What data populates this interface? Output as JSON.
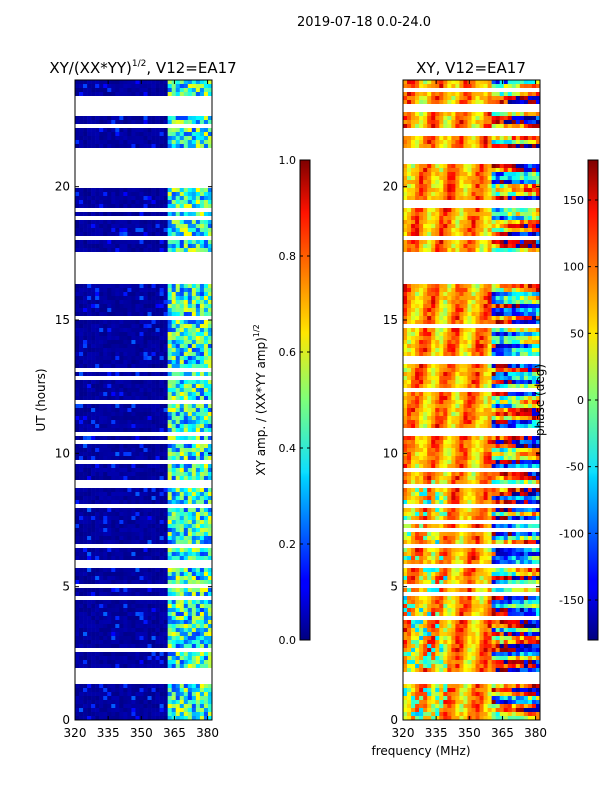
{
  "figure": {
    "suptitle": "2019-07-18 0.0-24.0",
    "xlabel": "frequency (MHz)"
  },
  "chart_data": [
    {
      "type": "heatmap",
      "title_main": "XY/(XX*YY)",
      "title_sup": "1/2",
      "title_tail": ", V12=EA17",
      "xlabel": "",
      "ylabel": "UT (hours)",
      "xlim": [
        320,
        382
      ],
      "ylim": [
        0,
        24
      ],
      "xticks": [
        "320",
        "335",
        "350",
        "365",
        "380"
      ],
      "xtick_values": [
        320,
        335,
        350,
        365,
        380
      ],
      "yticks": [
        "0",
        "5",
        "10",
        "15",
        "20"
      ],
      "ytick_values": [
        0,
        5,
        10,
        15,
        20
      ],
      "colorbar": {
        "label_main": "XY amp. / (XX*YY amp)",
        "label_sup": "1/2",
        "range": [
          0.0,
          1.0
        ],
        "ticks": [
          "0.0",
          "0.2",
          "0.4",
          "0.6",
          "0.8",
          "1.0"
        ],
        "tick_values": [
          0.0,
          0.2,
          0.4,
          0.6,
          0.8,
          1.0
        ]
      },
      "description_bands_mhz": [
        [
          362,
          382
        ]
      ],
      "blank_hours": [
        [
          1.4,
          1.8
        ],
        [
          16.3,
          17.6
        ],
        [
          19.9,
          21.4
        ],
        [
          22.8,
          23.1
        ]
      ]
    },
    {
      "type": "heatmap",
      "title": "XY, V12=EA17",
      "xlabel": "",
      "ylabel": "",
      "xlim": [
        320,
        382
      ],
      "ylim": [
        0,
        24
      ],
      "xticks": [
        "320",
        "335",
        "350",
        "365",
        "380"
      ],
      "xtick_values": [
        320,
        335,
        350,
        365,
        380
      ],
      "yticks": [
        "0",
        "5",
        "10",
        "15",
        "20"
      ],
      "ytick_values": [
        0,
        5,
        10,
        15,
        20
      ],
      "colorbar": {
        "label": "phase (deg)",
        "range": [
          -180,
          180
        ],
        "ticks": [
          "-150",
          "-100",
          "-50",
          "0",
          "50",
          "100",
          "150"
        ],
        "tick_values": [
          -150,
          -100,
          -50,
          0,
          50,
          100,
          150
        ]
      },
      "blank_hours": [
        [
          1.4,
          1.8
        ],
        [
          16.3,
          17.6
        ],
        [
          20.9,
          21.4
        ],
        [
          22.8,
          23.1
        ]
      ]
    }
  ]
}
